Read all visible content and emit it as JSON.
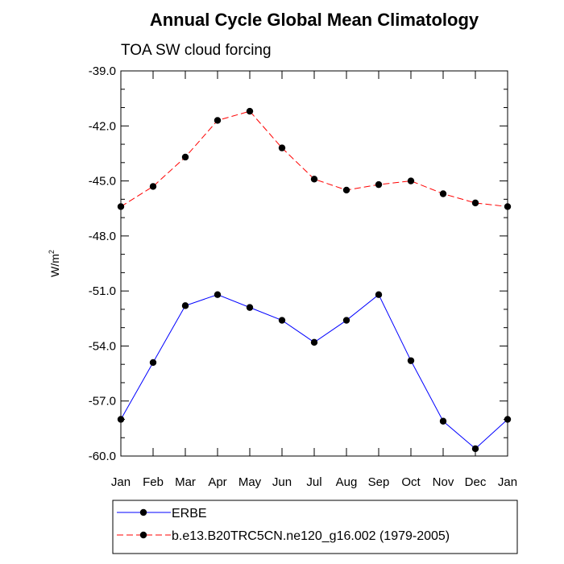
{
  "chart_data": {
    "type": "line",
    "title": "Annual Cycle Global Mean Climatology",
    "subtitle": "TOA SW cloud forcing",
    "xlabel": "",
    "ylabel": "W/m",
    "ylabel_superscript": "2",
    "categories": [
      "Jan",
      "Feb",
      "Mar",
      "Apr",
      "May",
      "Jun",
      "Jul",
      "Aug",
      "Sep",
      "Oct",
      "Nov",
      "Dec",
      "Jan"
    ],
    "ylim": [
      -60.0,
      -39.0
    ],
    "yticks": [
      -60.0,
      -57.0,
      -54.0,
      -51.0,
      -48.0,
      -45.0,
      -42.0,
      -39.0
    ],
    "ytick_labels": [
      "-60.0",
      "-57.0",
      "-54.0",
      "-51.0",
      "-48.0",
      "-45.0",
      "-42.0",
      "-39.0"
    ],
    "grid": false,
    "legend_position": "bottom",
    "series": [
      {
        "name": "ERBE",
        "color": "#0000ff",
        "dash": "solid",
        "values": [
          -58.0,
          -54.9,
          -51.8,
          -51.2,
          -51.9,
          -52.6,
          -53.8,
          -52.6,
          -51.2,
          -54.8,
          -58.1,
          -59.6,
          -58.0
        ]
      },
      {
        "name": "b.e13.B20TRC5CN.ne120_g16.002 (1979-2005)",
        "color": "#ff0000",
        "dash": "dashed",
        "values": [
          -46.4,
          -45.3,
          -43.7,
          -41.7,
          -41.2,
          -43.2,
          -44.9,
          -45.5,
          -45.2,
          -45.0,
          -45.7,
          -46.2,
          -46.4
        ]
      }
    ]
  }
}
